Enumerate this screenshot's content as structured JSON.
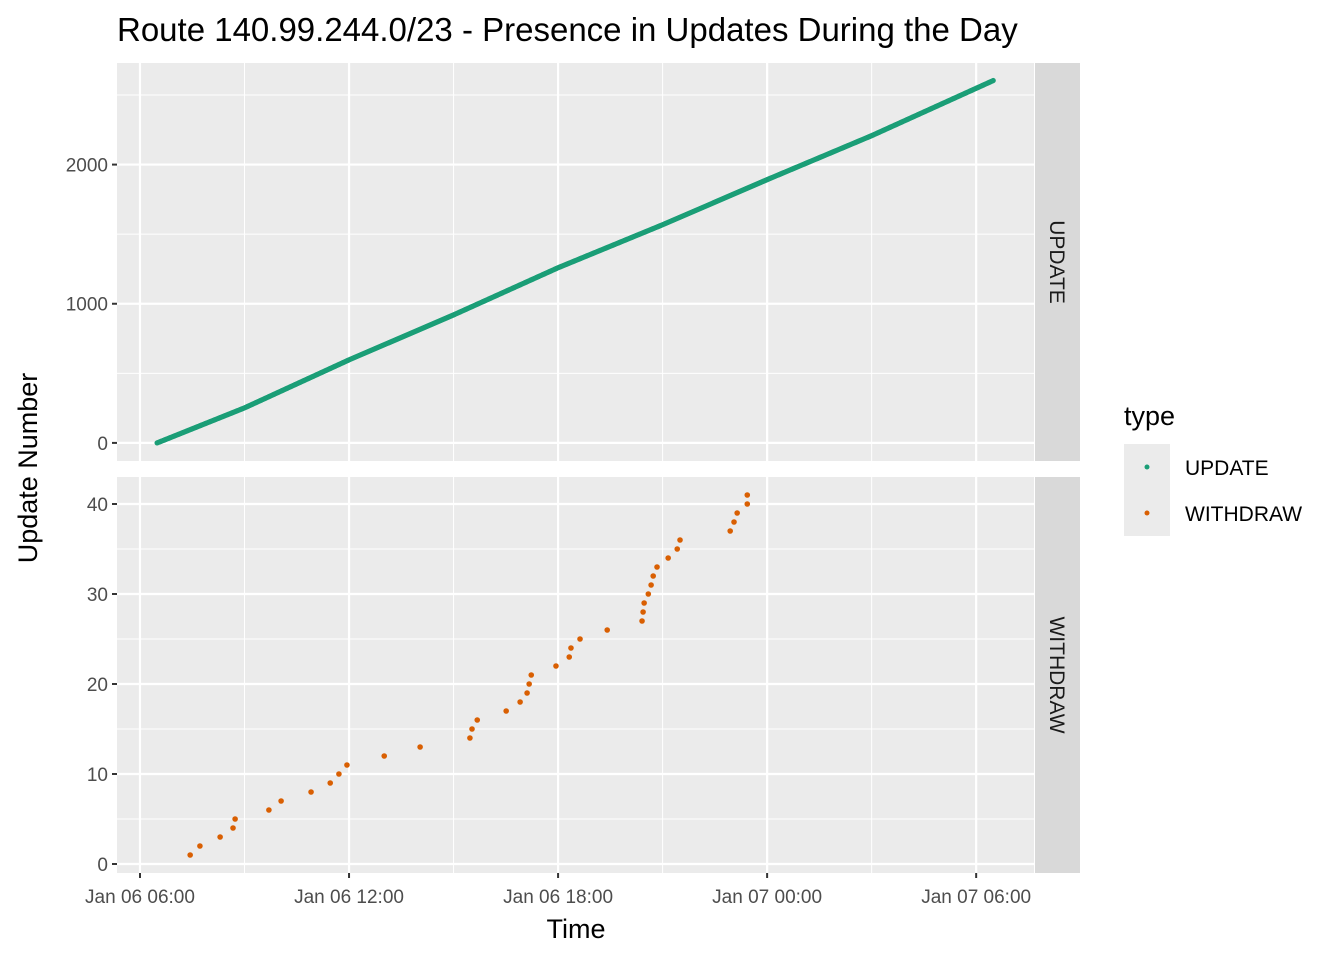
{
  "chart_data": {
    "type": "scatter",
    "title": "Route 140.99.244.0/23 - Presence in Updates During the Day",
    "xlabel": "Time",
    "ylabel": "Update Number",
    "x_units": "hours since Jan 06 06:00",
    "x_ticks": [
      {
        "value": 0,
        "label": "Jan 06 06:00"
      },
      {
        "value": 6,
        "label": "Jan 06 12:00"
      },
      {
        "value": 12,
        "label": "Jan 06 18:00"
      },
      {
        "value": 18,
        "label": "Jan 07 00:00"
      },
      {
        "value": 24,
        "label": "Jan 07 06:00"
      }
    ],
    "xlim": [
      -0.66,
      25.66
    ],
    "legend": {
      "title": "type",
      "placement": "right",
      "entries": [
        {
          "label": "UPDATE",
          "color": "#1B9E77"
        },
        {
          "label": "WITHDRAW",
          "color": "#D95F02"
        }
      ]
    },
    "facets": [
      {
        "strip": "UPDATE",
        "color": "#1B9E77",
        "ylim": [
          -130,
          2730
        ],
        "y_ticks": [
          {
            "value": 0,
            "label": "0"
          },
          {
            "value": 1000,
            "label": "1000"
          },
          {
            "value": 2000,
            "label": "2000"
          }
        ],
        "series_kind": "dense-points",
        "points": [
          [
            0.49,
            0
          ],
          [
            3,
            252
          ],
          [
            6,
            597
          ],
          [
            9,
            920
          ],
          [
            12,
            1259
          ],
          [
            15,
            1568
          ],
          [
            18,
            1892
          ],
          [
            21,
            2208
          ],
          [
            24.49,
            2604
          ]
        ]
      },
      {
        "strip": "WITHDRAW",
        "color": "#D95F02",
        "ylim": [
          -1,
          43
        ],
        "y_ticks": [
          {
            "value": 0,
            "label": "0"
          },
          {
            "value": 10,
            "label": "10"
          },
          {
            "value": 20,
            "label": "20"
          },
          {
            "value": 30,
            "label": "30"
          },
          {
            "value": 40,
            "label": "40"
          }
        ],
        "series_kind": "points",
        "points": [
          [
            1.44,
            1
          ],
          [
            1.72,
            2
          ],
          [
            2.3,
            3
          ],
          [
            2.67,
            4
          ],
          [
            2.73,
            5
          ],
          [
            3.7,
            6
          ],
          [
            4.05,
            7
          ],
          [
            4.91,
            8
          ],
          [
            5.46,
            9
          ],
          [
            5.71,
            10
          ],
          [
            5.94,
            11
          ],
          [
            7.01,
            12
          ],
          [
            8.04,
            13
          ],
          [
            9.47,
            14
          ],
          [
            9.53,
            15
          ],
          [
            9.68,
            16
          ],
          [
            10.51,
            17
          ],
          [
            10.91,
            18
          ],
          [
            11.11,
            19
          ],
          [
            11.17,
            20
          ],
          [
            11.23,
            21
          ],
          [
            11.94,
            22
          ],
          [
            12.32,
            23
          ],
          [
            12.37,
            24
          ],
          [
            12.63,
            25
          ],
          [
            13.41,
            26
          ],
          [
            14.41,
            27
          ],
          [
            14.44,
            28
          ],
          [
            14.47,
            29
          ],
          [
            14.59,
            30
          ],
          [
            14.67,
            31
          ],
          [
            14.73,
            32
          ],
          [
            14.84,
            33
          ],
          [
            15.16,
            34
          ],
          [
            15.42,
            35
          ],
          [
            15.5,
            36
          ],
          [
            16.94,
            37
          ],
          [
            17.05,
            38
          ],
          [
            17.14,
            39
          ],
          [
            17.43,
            40
          ],
          [
            17.43,
            41
          ]
        ]
      }
    ]
  }
}
